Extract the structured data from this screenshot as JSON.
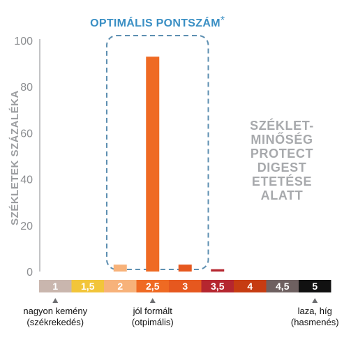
{
  "chart_data": {
    "type": "bar",
    "ylabel": "SZÉKLETEK SZÁZALÉKA",
    "ylim": [
      0,
      100
    ],
    "y_ticks": [
      "0",
      "20",
      "40",
      "60",
      "80",
      "100"
    ],
    "categories": [
      "1",
      "1,5",
      "2",
      "2,5",
      "3",
      "3,5",
      "4",
      "4,5",
      "5"
    ],
    "values": [
      0,
      0,
      3,
      93,
      3,
      1,
      0,
      0,
      0
    ],
    "bar_colors": [
      "#c9b6ae",
      "#f2c53a",
      "#f7b27a",
      "#ef6a23",
      "#e6581f",
      "#b5262f",
      "#c63c12",
      "#6e6060",
      "#111111"
    ],
    "scale_colors": [
      "#c9b6ae",
      "#f2c53a",
      "#f7b27a",
      "#ef6a23",
      "#e6581f",
      "#b5262f",
      "#c63c12",
      "#6e6060",
      "#111111"
    ],
    "scale_text_colors": [
      "#ffffff",
      "#ffffff",
      "#ffffff",
      "#ffffff",
      "#ffffff",
      "#ffffff",
      "#ffffff",
      "#ffffff",
      "#ffffff"
    ],
    "optimal_box": {
      "title": "OPTIMÁLIS PONTSZÁM",
      "asterisk": "*",
      "range": [
        "2",
        "3"
      ]
    },
    "side_label": [
      "SZÉKLET-",
      "MINŐSÉG",
      "PROTECT",
      "DIGEST",
      "ETETÉSE",
      "ALATT"
    ],
    "annotations": [
      {
        "category": "1",
        "lines": [
          "nagyon kemény",
          "(székrekedés)"
        ]
      },
      {
        "category": "2,5",
        "lines": [
          "jól formált",
          "(otpimális)"
        ]
      },
      {
        "category": "5",
        "lines": [
          "laza, híg",
          "(hasmenés)"
        ]
      }
    ],
    "grid": false
  },
  "colors": {
    "axis": "#9b9da0",
    "dashed_box": "#5d8fb1",
    "title": "#3a8fc4",
    "side_label": "#a7a9ac"
  }
}
